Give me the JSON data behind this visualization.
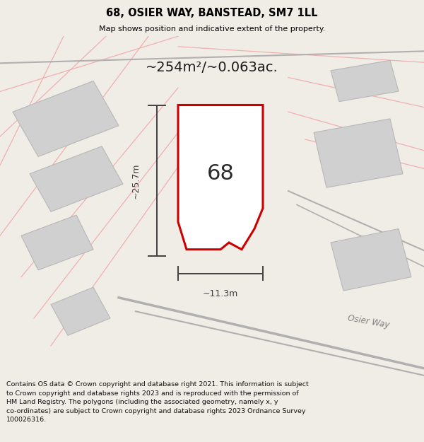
{
  "title": "68, OSIER WAY, BANSTEAD, SM7 1LL",
  "subtitle": "Map shows position and indicative extent of the property.",
  "area_text": "~254m²/~0.063ac.",
  "dim_width": "~11.3m",
  "dim_height": "~25.7m",
  "label_number": "68",
  "osier_way_label": "Osier Way",
  "footer": "Contains OS data © Crown copyright and database right 2021. This information is subject to Crown copyright and database rights 2023 and is reproduced with the permission of HM Land Registry. The polygons (including the associated geometry, namely x, y co-ordinates) are subject to Crown copyright and database rights 2023 Ordnance Survey 100026316.",
  "bg_color": "#f0ece6",
  "map_bg": "#f5f1ec",
  "header_bg": "#ffffff",
  "plot_outline_color": "#cc0000",
  "neighbor_fill": "#d0d0d0",
  "neighbor_outline": "#b8b8b8",
  "road_line_color": "#b0b0b0",
  "faint_line_color": "#f0b0b0",
  "dim_line_color": "#404040",
  "road_label_color": "#808080",
  "title_color": "#000000",
  "footer_color": "#111111"
}
